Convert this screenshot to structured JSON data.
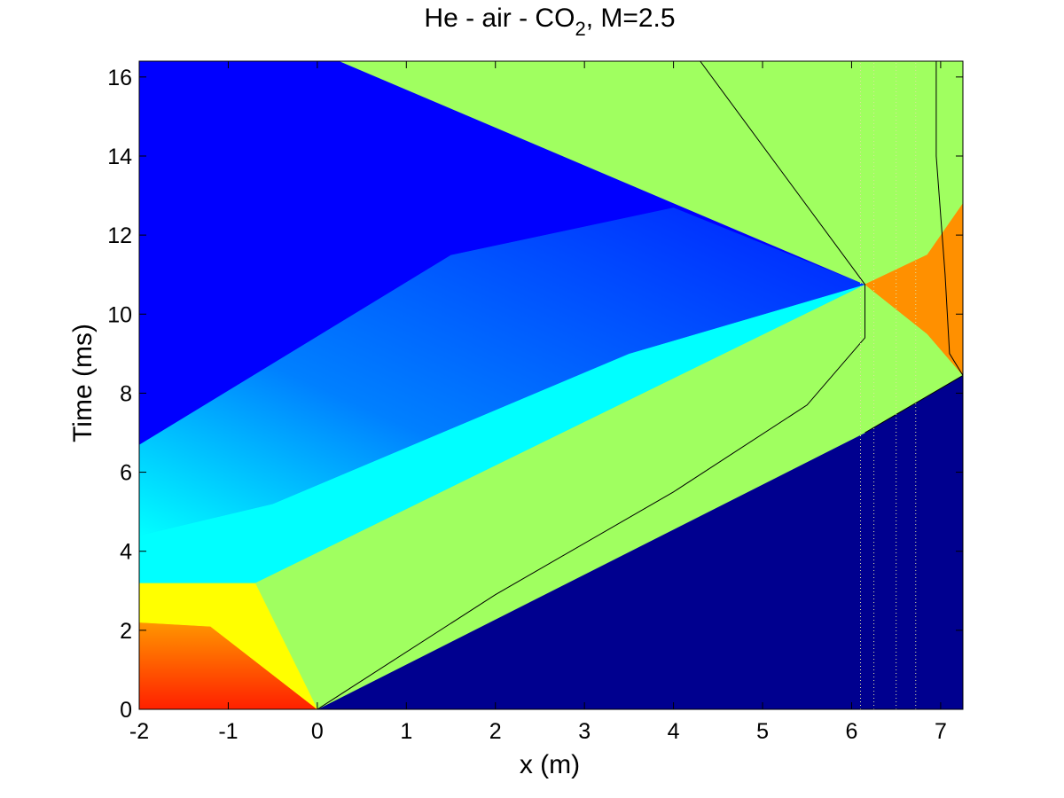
{
  "chart_data": {
    "type": "heatmap",
    "title": "He - air - CO",
    "title_subscript": "2",
    "title_suffix": ", M=2.5",
    "xlabel": "x (m)",
    "ylabel": "Time (ms)",
    "xlim": [
      -2,
      7.25
    ],
    "ylim": [
      0,
      16.4
    ],
    "xticks": [
      -2,
      -1,
      0,
      1,
      2,
      3,
      4,
      5,
      6,
      7
    ],
    "xtick_labels": [
      "-2",
      "-1",
      "0",
      "1",
      "2",
      "3",
      "4",
      "5",
      "6",
      "7"
    ],
    "yticks": [
      0,
      2,
      4,
      6,
      8,
      10,
      12,
      14,
      16
    ],
    "ytick_labels": [
      "0",
      "2",
      "4",
      "6",
      "8",
      "10",
      "12",
      "14",
      "16"
    ],
    "grid": false,
    "colormap": "jet",
    "colors": {
      "deep_blue": "#00008f",
      "blue": "#0000ff",
      "mid_blue": "#0040ff",
      "light_blue": "#0080ff",
      "cyan": "#00ffff",
      "green_yellow": "#a0ff60",
      "yellow": "#ffff00",
      "orange": "#ff9000",
      "red": "#ff3000",
      "dark_red": "#800000"
    },
    "regions": [
      {
        "name": "undisturbed",
        "color": "deep_blue",
        "polygon": [
          [
            0,
            0
          ],
          [
            7.25,
            0
          ],
          [
            7.25,
            8.45
          ],
          [
            6.15,
            7.0
          ]
        ]
      },
      {
        "name": "post-shock",
        "color": "green_yellow",
        "polygon": [
          [
            0,
            0
          ],
          [
            6.15,
            7.0
          ],
          [
            7.25,
            8.45
          ],
          [
            6.85,
            9.5
          ],
          [
            6.15,
            10.75
          ],
          [
            -0.7,
            3.2
          ],
          [
            -0.7,
            3.0
          ]
        ]
      },
      {
        "name": "driver-hot",
        "color": "red",
        "polygon": [
          [
            -2,
            0
          ],
          [
            0,
            0
          ],
          [
            -1.0,
            2.7
          ],
          [
            -2,
            2.7
          ]
        ]
      },
      {
        "name": "driver-warm",
        "color": "yellow",
        "polygon": [
          [
            -2,
            2.2
          ],
          [
            -1.2,
            2.1
          ],
          [
            0,
            0
          ],
          [
            -0.7,
            3.2
          ],
          [
            -2,
            3.2
          ]
        ]
      },
      {
        "name": "expansion-cyan",
        "color": "cyan",
        "polygon": [
          [
            -2,
            3.2
          ],
          [
            -0.7,
            3.2
          ],
          [
            6.15,
            10.75
          ],
          [
            3.5,
            9.0
          ],
          [
            -0.5,
            5.2
          ],
          [
            -2,
            4.4
          ]
        ]
      },
      {
        "name": "expansion-blue",
        "color": "light_blue",
        "polygon": [
          [
            -2,
            4.4
          ],
          [
            -0.5,
            5.2
          ],
          [
            3.5,
            9.0
          ],
          [
            6.15,
            10.75
          ],
          [
            4.0,
            12.7
          ],
          [
            1.5,
            11.5
          ],
          [
            -2,
            6.7
          ]
        ]
      },
      {
        "name": "quiescent-blue",
        "color": "blue",
        "polygon": [
          [
            -2,
            6.7
          ],
          [
            1.5,
            11.5
          ],
          [
            4.0,
            12.7
          ],
          [
            6.15,
            10.75
          ],
          [
            0.25,
            16.4
          ],
          [
            -2,
            16.4
          ]
        ]
      },
      {
        "name": "reflected-region",
        "color": "green_yellow",
        "polygon": [
          [
            0.25,
            16.4
          ],
          [
            7.25,
            16.4
          ],
          [
            7.25,
            12.0
          ],
          [
            6.85,
            11.0
          ],
          [
            6.15,
            10.75
          ]
        ]
      },
      {
        "name": "reflected-hot",
        "color": "orange",
        "polygon": [
          [
            6.15,
            10.75
          ],
          [
            6.85,
            11.5
          ],
          [
            7.25,
            12.8
          ],
          [
            7.25,
            8.45
          ],
          [
            6.85,
            9.5
          ]
        ]
      }
    ],
    "curves": [
      {
        "name": "interface-1",
        "points": [
          [
            0,
            0
          ],
          [
            2.0,
            2.9
          ],
          [
            4.0,
            5.5
          ],
          [
            5.5,
            7.7
          ],
          [
            6.15,
            9.4
          ],
          [
            6.15,
            10.75
          ],
          [
            4.3,
            16.4
          ]
        ]
      },
      {
        "name": "interface-2",
        "points": [
          [
            6.15,
            7.0
          ],
          [
            7.25,
            8.45
          ],
          [
            7.1,
            9.0
          ],
          [
            7.05,
            11.0
          ],
          [
            6.95,
            14.0
          ],
          [
            6.95,
            16.4
          ]
        ]
      }
    ],
    "probes_x": [
      6.1,
      6.25,
      6.5,
      6.72
    ]
  }
}
